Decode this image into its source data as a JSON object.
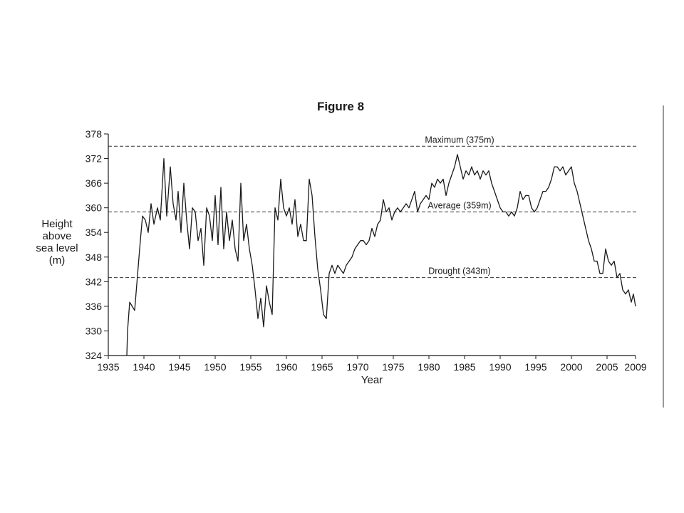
{
  "chart_data": {
    "type": "line",
    "title": "Figure 8",
    "xlabel": "Year",
    "ylabel_lines": [
      "Height",
      "above",
      "sea level",
      "(m)"
    ],
    "xlim": [
      1935,
      2009
    ],
    "ylim": [
      324,
      378
    ],
    "x_ticks": [
      1935,
      1940,
      1945,
      1950,
      1955,
      1960,
      1965,
      1970,
      1975,
      1980,
      1985,
      1990,
      1995,
      2000,
      2005,
      2009
    ],
    "y_ticks": [
      324,
      330,
      336,
      342,
      348,
      354,
      360,
      366,
      372,
      378
    ],
    "grid": false,
    "reference_lines": [
      {
        "label": "Maximum (375m)",
        "value": 375
      },
      {
        "label": "Average (359m)",
        "value": 359
      },
      {
        "label": "Drought (343m)",
        "value": 343
      }
    ],
    "series": [
      {
        "values": [
          [
            1937.6,
            324
          ],
          [
            1937.7,
            330
          ],
          [
            1938.0,
            337
          ],
          [
            1938.7,
            335
          ],
          [
            1939.4,
            350
          ],
          [
            1939.8,
            358
          ],
          [
            1940.2,
            357
          ],
          [
            1940.6,
            354
          ],
          [
            1941.0,
            361
          ],
          [
            1941.4,
            356
          ],
          [
            1941.9,
            360
          ],
          [
            1942.3,
            357
          ],
          [
            1942.8,
            372
          ],
          [
            1943.2,
            358
          ],
          [
            1943.7,
            370
          ],
          [
            1944.1,
            361
          ],
          [
            1944.5,
            357
          ],
          [
            1944.8,
            364
          ],
          [
            1945.2,
            354
          ],
          [
            1945.6,
            366
          ],
          [
            1946.0,
            357
          ],
          [
            1946.4,
            350
          ],
          [
            1946.8,
            360
          ],
          [
            1947.2,
            359
          ],
          [
            1947.6,
            352
          ],
          [
            1948.0,
            355
          ],
          [
            1948.4,
            346
          ],
          [
            1948.8,
            360
          ],
          [
            1949.2,
            358
          ],
          [
            1949.6,
            352
          ],
          [
            1950.0,
            363
          ],
          [
            1950.4,
            351
          ],
          [
            1950.8,
            365
          ],
          [
            1951.2,
            350
          ],
          [
            1951.6,
            359
          ],
          [
            1952.0,
            352
          ],
          [
            1952.4,
            357
          ],
          [
            1952.8,
            350
          ],
          [
            1953.2,
            347
          ],
          [
            1953.6,
            366
          ],
          [
            1954.0,
            352
          ],
          [
            1954.4,
            356
          ],
          [
            1954.8,
            350
          ],
          [
            1955.2,
            346
          ],
          [
            1955.6,
            340
          ],
          [
            1956.0,
            333
          ],
          [
            1956.4,
            338
          ],
          [
            1956.8,
            331
          ],
          [
            1957.2,
            341
          ],
          [
            1957.6,
            337
          ],
          [
            1958.0,
            334
          ],
          [
            1958.4,
            360
          ],
          [
            1958.8,
            357
          ],
          [
            1959.2,
            367
          ],
          [
            1959.6,
            360
          ],
          [
            1960.0,
            358
          ],
          [
            1960.4,
            360
          ],
          [
            1960.8,
            356
          ],
          [
            1961.2,
            362
          ],
          [
            1961.6,
            353
          ],
          [
            1962.0,
            356
          ],
          [
            1962.4,
            352
          ],
          [
            1962.8,
            352
          ],
          [
            1963.2,
            367
          ],
          [
            1963.6,
            363
          ],
          [
            1964.0,
            353
          ],
          [
            1964.4,
            345
          ],
          [
            1964.8,
            340
          ],
          [
            1965.2,
            334
          ],
          [
            1965.6,
            333
          ],
          [
            1966.0,
            344
          ],
          [
            1966.4,
            346
          ],
          [
            1966.8,
            344
          ],
          [
            1967.2,
            346
          ],
          [
            1967.6,
            345
          ],
          [
            1968.0,
            344
          ],
          [
            1968.4,
            346
          ],
          [
            1968.8,
            347
          ],
          [
            1969.2,
            348
          ],
          [
            1969.6,
            350
          ],
          [
            1970.0,
            351
          ],
          [
            1970.4,
            352
          ],
          [
            1970.8,
            352
          ],
          [
            1971.2,
            351
          ],
          [
            1971.6,
            352
          ],
          [
            1972.0,
            355
          ],
          [
            1972.4,
            353
          ],
          [
            1972.8,
            356
          ],
          [
            1973.2,
            357
          ],
          [
            1973.6,
            362
          ],
          [
            1974.0,
            359
          ],
          [
            1974.4,
            360
          ],
          [
            1974.8,
            357
          ],
          [
            1975.2,
            359
          ],
          [
            1975.6,
            360
          ],
          [
            1976.0,
            359
          ],
          [
            1976.4,
            360
          ],
          [
            1976.8,
            361
          ],
          [
            1977.2,
            360
          ],
          [
            1977.6,
            362
          ],
          [
            1978.0,
            364
          ],
          [
            1978.4,
            359
          ],
          [
            1978.8,
            361
          ],
          [
            1979.2,
            362
          ],
          [
            1979.6,
            363
          ],
          [
            1980.0,
            362
          ],
          [
            1980.4,
            366
          ],
          [
            1980.8,
            365
          ],
          [
            1981.2,
            367
          ],
          [
            1981.6,
            366
          ],
          [
            1982.0,
            367
          ],
          [
            1982.4,
            363
          ],
          [
            1982.8,
            366
          ],
          [
            1983.2,
            368
          ],
          [
            1983.6,
            370
          ],
          [
            1984.0,
            373
          ],
          [
            1984.4,
            370
          ],
          [
            1984.8,
            367
          ],
          [
            1985.2,
            369
          ],
          [
            1985.6,
            368
          ],
          [
            1986.0,
            370
          ],
          [
            1986.4,
            368
          ],
          [
            1986.8,
            369
          ],
          [
            1987.2,
            367
          ],
          [
            1987.6,
            369
          ],
          [
            1988.0,
            368
          ],
          [
            1988.4,
            369
          ],
          [
            1988.8,
            366
          ],
          [
            1989.2,
            364
          ],
          [
            1989.6,
            362
          ],
          [
            1990.0,
            360
          ],
          [
            1990.4,
            359
          ],
          [
            1990.8,
            359
          ],
          [
            1991.2,
            358
          ],
          [
            1991.6,
            359
          ],
          [
            1992.0,
            358
          ],
          [
            1992.4,
            360
          ],
          [
            1992.8,
            364
          ],
          [
            1993.2,
            362
          ],
          [
            1993.6,
            363
          ],
          [
            1994.0,
            363
          ],
          [
            1994.4,
            360
          ],
          [
            1994.8,
            359
          ],
          [
            1995.2,
            360
          ],
          [
            1995.6,
            362
          ],
          [
            1996.0,
            364
          ],
          [
            1996.4,
            364
          ],
          [
            1996.8,
            365
          ],
          [
            1997.2,
            367
          ],
          [
            1997.6,
            370
          ],
          [
            1998.0,
            370
          ],
          [
            1998.4,
            369
          ],
          [
            1998.8,
            370
          ],
          [
            1999.2,
            368
          ],
          [
            1999.6,
            369
          ],
          [
            2000.0,
            370
          ],
          [
            2000.4,
            366
          ],
          [
            2000.8,
            364
          ],
          [
            2001.2,
            361
          ],
          [
            2001.6,
            358
          ],
          [
            2002.0,
            355
          ],
          [
            2002.4,
            352
          ],
          [
            2002.8,
            350
          ],
          [
            2003.2,
            347
          ],
          [
            2003.6,
            347
          ],
          [
            2004.0,
            344
          ],
          [
            2004.4,
            344
          ],
          [
            2004.8,
            350
          ],
          [
            2005.2,
            347
          ],
          [
            2005.6,
            346
          ],
          [
            2006.0,
            347
          ],
          [
            2006.4,
            343
          ],
          [
            2006.8,
            344
          ],
          [
            2007.2,
            340
          ],
          [
            2007.6,
            339
          ],
          [
            2008.0,
            340
          ],
          [
            2008.4,
            337
          ],
          [
            2008.7,
            339
          ],
          [
            2009.0,
            336
          ]
        ]
      }
    ]
  }
}
